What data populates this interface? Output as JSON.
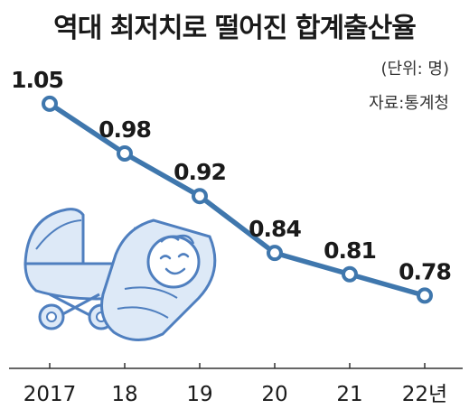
{
  "header": {
    "title": "역대 최저치로 떨어진 합계출산율",
    "unit": "(단위: 명)",
    "source": "자료:통계청"
  },
  "colors": {
    "line": "#3f77ad",
    "marker_fill": "#ffffff",
    "illustration_fill": "#dde9f7",
    "illustration_stroke": "#4f7fbf",
    "axis": "#333333"
  },
  "illustration": {
    "icon": "baby-and-stroller-icon"
  },
  "chart_data": {
    "type": "line",
    "categories": [
      "2017",
      "18",
      "19",
      "20",
      "21",
      "22년"
    ],
    "values": [
      1.05,
      0.98,
      0.92,
      0.84,
      0.81,
      0.78
    ],
    "data_labels": [
      "1.05",
      "0.98",
      "0.92",
      "0.84",
      "0.81",
      "0.78"
    ],
    "title": "역대 최저치로 떨어진 합계출산율",
    "xlabel": "",
    "ylabel": "",
    "ylim": [
      0.75,
      1.06
    ],
    "grid": false,
    "legend": "none"
  }
}
